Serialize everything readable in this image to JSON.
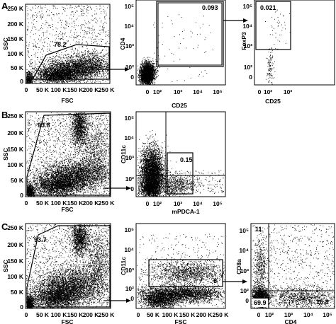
{
  "panels": [
    {
      "letter": "A",
      "plots": [
        {
          "id": "a1",
          "kind": "fsc-ssc",
          "xlabel": "FSC",
          "ylabel": "SSC",
          "xticks": [
            "0",
            "50 K",
            "100 K",
            "150 K",
            "200 K",
            "250 K"
          ],
          "yticks": [
            "0",
            "50 K",
            "100 K",
            "150 K",
            "200 K",
            "250 K"
          ],
          "gates": [
            {
              "label": "78.2"
            }
          ]
        },
        {
          "id": "a2",
          "kind": "log-log",
          "xlabel": "CD25",
          "ylabel": "CD4",
          "xticks": [
            "0",
            "10²",
            "10³",
            "10⁴",
            "10⁵"
          ],
          "yticks": [
            "0",
            "10²",
            "10³",
            "10⁴",
            "10⁵"
          ],
          "gates": [
            {
              "label": "0.093"
            }
          ]
        },
        {
          "id": "a3",
          "kind": "log-log",
          "xlabel": "CD25",
          "ylabel": "FoxP3",
          "xticks": [
            "0",
            "10²",
            "10³"
          ],
          "yticks": [
            "0",
            "10²",
            "10³",
            "10⁴",
            "10⁵"
          ],
          "gates": [
            {
              "label": "0.021"
            }
          ]
        }
      ]
    },
    {
      "letter": "B",
      "plots": [
        {
          "id": "b1",
          "kind": "fsc-ssc",
          "xlabel": "FSC",
          "ylabel": "SSC",
          "xticks": [
            "0",
            "50 K",
            "100 K",
            "150 K",
            "200 K",
            "250 K"
          ],
          "yticks": [
            "0",
            "50 K",
            "100 K",
            "150 K",
            "200 K",
            "250 K"
          ],
          "gates": [
            {
              "label": "93.8"
            }
          ]
        },
        {
          "id": "b2",
          "kind": "log-log",
          "xlabel": "mPDCA-1",
          "ylabel": "CD11c",
          "xticks": [
            "0",
            "10²",
            "10³",
            "10⁴",
            "10⁵"
          ],
          "yticks": [
            "0",
            "10²",
            "10³",
            "10⁴",
            "10⁵"
          ],
          "gates": [
            {
              "label": "0.15"
            }
          ]
        }
      ]
    },
    {
      "letter": "C",
      "plots": [
        {
          "id": "c1",
          "kind": "fsc-ssc",
          "xlabel": "FSC",
          "ylabel": "SSC",
          "xticks": [
            "0",
            "50 K",
            "100 K",
            "150 K",
            "200 K",
            "250 K"
          ],
          "yticks": [
            "0",
            "50 K",
            "100 K",
            "150 K",
            "200 K",
            "250 K"
          ],
          "gates": [
            {
              "label": "93.7"
            }
          ]
        },
        {
          "id": "c2",
          "kind": "fsc-log",
          "xlabel": "FSC",
          "ylabel": "CD11c",
          "xticks": [
            "0",
            "50 K",
            "100 K",
            "150 K",
            "200 K",
            "250 K"
          ],
          "yticks": [
            "0",
            "10²",
            "10³",
            "10⁴",
            "10⁵"
          ],
          "gates": [
            {
              "label": "6"
            }
          ]
        },
        {
          "id": "c3",
          "kind": "log-log",
          "xlabel": "CD4",
          "ylabel": "CD8a",
          "xticks": [
            "0",
            "10²",
            "10³",
            "10⁴",
            "10⁵"
          ],
          "yticks": [
            "0",
            "10²",
            "10³",
            "10⁴",
            "10⁵"
          ],
          "gates": [
            {
              "label": "11"
            },
            {
              "label": "69.9"
            },
            {
              "label": "15.8"
            }
          ]
        }
      ]
    }
  ]
}
